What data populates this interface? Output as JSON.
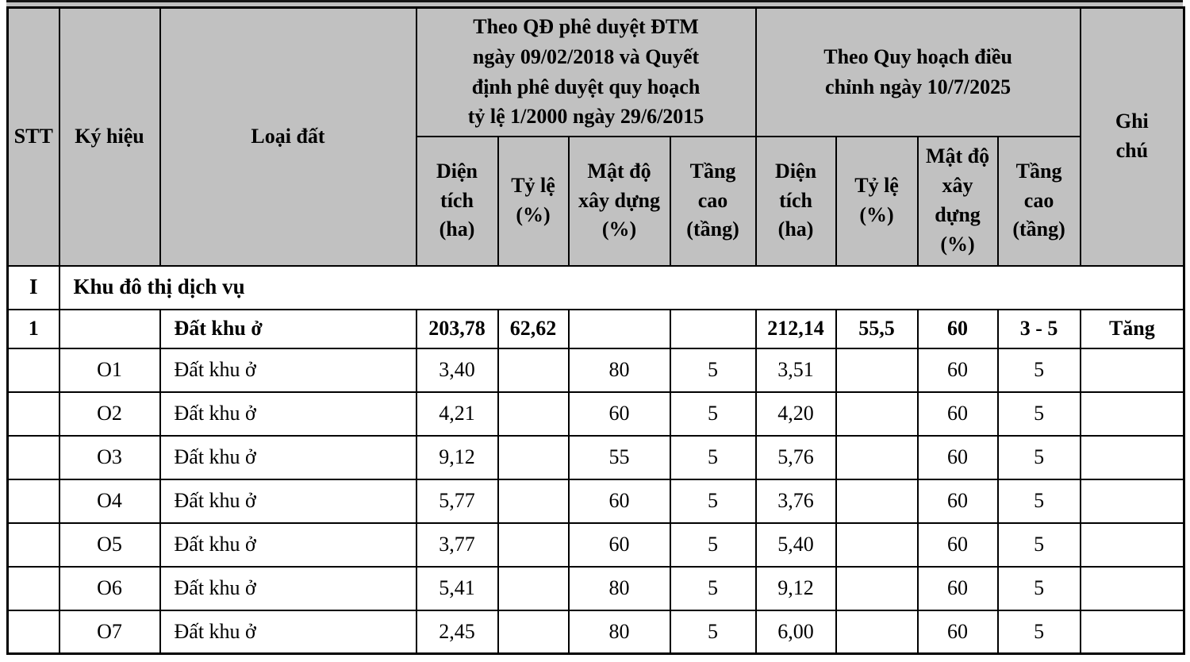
{
  "page": {
    "background": "#ffffff",
    "top_edge_color": "#161616"
  },
  "table": {
    "header_bg": "#c1c1c1",
    "border_color": "#000000",
    "columns": {
      "stt": "STT",
      "ky_hieu": "Ký hiệu",
      "loai_dat": "Loại đất",
      "group_qd": "Theo QĐ phê duyệt ĐTM ngày 09/02/2018 và Quyết định phê duyệt quy hoạch tỷ lệ 1/2000 ngày 29/6/2015",
      "group_qh": "Theo Quy hoạch điều chỉnh ngày 10/7/2025",
      "ghi_chu": "Ghi chú",
      "sub": [
        "Diện tích (ha)",
        "Tỷ lệ (%)",
        "Mật độ xây dựng (%)",
        "Tầng cao (tầng)"
      ]
    },
    "rows": [
      {
        "type": "section",
        "stt": "I",
        "label": "Khu đô thị dịch vụ"
      },
      {
        "type": "total",
        "cells": [
          "1",
          "",
          "Đất khu ở",
          "203,78",
          "62,62",
          "",
          "",
          "212,14",
          "55,5",
          "60",
          "3 - 5",
          "Tăng"
        ]
      },
      {
        "type": "item",
        "cells": [
          "",
          "O1",
          "Đất khu ở",
          "3,40",
          "",
          "80",
          "5",
          "3,51",
          "",
          "60",
          "5",
          ""
        ]
      },
      {
        "type": "item",
        "cells": [
          "",
          "O2",
          "Đất khu ở",
          "4,21",
          "",
          "60",
          "5",
          "4,20",
          "",
          "60",
          "5",
          ""
        ]
      },
      {
        "type": "item",
        "cells": [
          "",
          "O3",
          "Đất khu ở",
          "9,12",
          "",
          "55",
          "5",
          "5,76",
          "",
          "60",
          "5",
          ""
        ]
      },
      {
        "type": "item",
        "cells": [
          "",
          "O4",
          "Đất khu ở",
          "5,77",
          "",
          "60",
          "5",
          "3,76",
          "",
          "60",
          "5",
          ""
        ]
      },
      {
        "type": "item",
        "cells": [
          "",
          "O5",
          "Đất khu ở",
          "3,77",
          "",
          "60",
          "5",
          "5,40",
          "",
          "60",
          "5",
          ""
        ]
      },
      {
        "type": "item",
        "cells": [
          "",
          "O6",
          "Đất khu ở",
          "5,41",
          "",
          "80",
          "5",
          "9,12",
          "",
          "60",
          "5",
          ""
        ]
      },
      {
        "type": "item",
        "cells": [
          "",
          "O7",
          "Đất khu ở",
          "2,45",
          "",
          "80",
          "5",
          "6,00",
          "",
          "60",
          "5",
          ""
        ]
      }
    ]
  }
}
